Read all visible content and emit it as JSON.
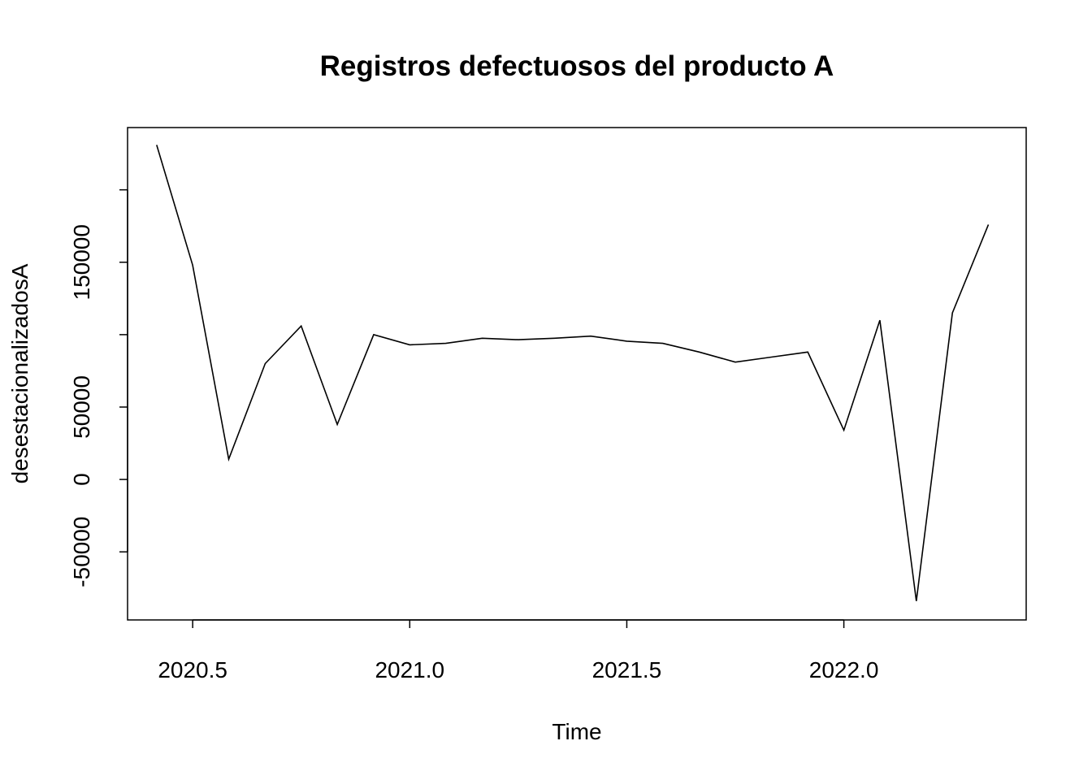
{
  "chart_data": {
    "type": "line",
    "title": "Registros defectuosos del producto A",
    "xlabel": "Time",
    "ylabel": "desestacionalizadosA",
    "xlim": [
      2020.35,
      2022.42
    ],
    "ylim": [
      -97000,
      243000
    ],
    "x_ticks": [
      2020.5,
      2021.0,
      2021.5,
      2022.0
    ],
    "x_tick_labels": [
      "2020.5",
      "2021.0",
      "2021.5",
      "2022.0"
    ],
    "y_ticks": [
      -50000,
      0,
      50000,
      100000,
      150000,
      200000
    ],
    "y_tick_labels": [
      "-50000",
      "0",
      "50000",
      "",
      "150000",
      ""
    ],
    "grid": false,
    "series": [
      {
        "x": [
          2020.417,
          2020.5,
          2020.583,
          2020.667,
          2020.75,
          2020.833,
          2020.917,
          2021.0,
          2021.083,
          2021.167,
          2021.25,
          2021.333,
          2021.417,
          2021.5,
          2021.583,
          2021.667,
          2021.75,
          2021.833,
          2021.917,
          2022.0,
          2022.083,
          2022.167,
          2022.25,
          2022.333
        ],
        "values": [
          231000,
          148000,
          14000,
          80000,
          106000,
          38000,
          100000,
          93000,
          94000,
          97500,
          96500,
          97500,
          99000,
          95500,
          94000,
          88000,
          81000,
          84500,
          88000,
          34000,
          110000,
          -84000,
          115000,
          176000
        ]
      }
    ]
  }
}
